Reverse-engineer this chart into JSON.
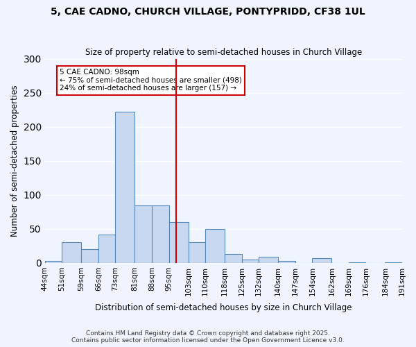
{
  "title": "5, CAE CADNO, CHURCH VILLAGE, PONTYPRIDD, CF38 1UL",
  "subtitle": "Size of property relative to semi-detached houses in Church Village",
  "xlabel": "Distribution of semi-detached houses by size in Church Village",
  "ylabel": "Number of semi-detached properties",
  "bin_labels": [
    "44sqm",
    "51sqm",
    "59sqm",
    "66sqm",
    "73sqm",
    "81sqm",
    "88sqm",
    "95sqm",
    "103sqm",
    "110sqm",
    "118sqm",
    "125sqm",
    "132sqm",
    "140sqm",
    "147sqm",
    "154sqm",
    "162sqm",
    "169sqm",
    "176sqm",
    "184sqm",
    "191sqm"
  ],
  "bin_edges": [
    44,
    51,
    59,
    66,
    73,
    81,
    88,
    95,
    103,
    110,
    118,
    125,
    132,
    140,
    147,
    154,
    162,
    169,
    176,
    184,
    191
  ],
  "bar_heights": [
    3,
    30,
    20,
    42,
    222,
    85,
    85,
    60,
    30,
    50,
    13,
    5,
    9,
    3,
    0,
    7,
    0,
    1,
    0,
    1
  ],
  "bar_color": "#c8d8f0",
  "bar_edge_color": "#5588bb",
  "vline_x": 98,
  "vline_color": "#cc0000",
  "annotation_text": "5 CAE CADNO: 98sqm\n← 75% of semi-detached houses are smaller (498)\n24% of semi-detached houses are larger (157) →",
  "annotation_box_color": "#ffffff",
  "annotation_box_edge_color": "#cc0000",
  "ylim": [
    0,
    300
  ],
  "yticks": [
    0,
    50,
    100,
    150,
    200,
    250,
    300
  ],
  "bg_color": "#f0f4ff",
  "grid_color": "#ffffff",
  "footer_line1": "Contains HM Land Registry data © Crown copyright and database right 2025.",
  "footer_line2": "Contains public sector information licensed under the Open Government Licence v3.0."
}
